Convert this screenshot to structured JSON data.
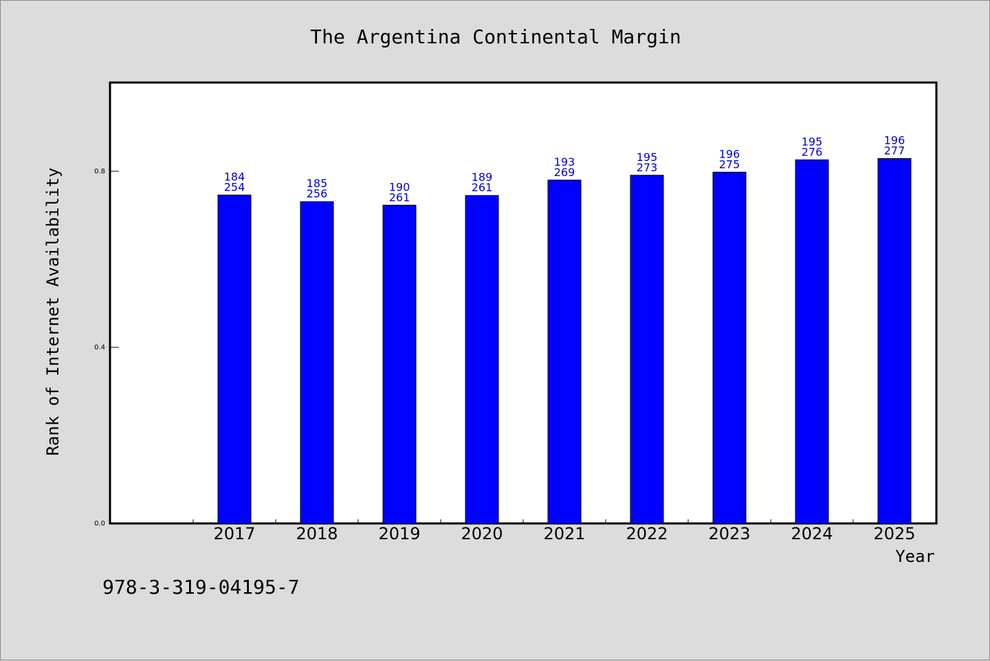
{
  "chart_data": {
    "type": "bar",
    "title": "The Argentina Continental Margin",
    "xlabel": "Year",
    "ylabel": "Rank of Internet Availability",
    "categories": [
      "2017",
      "2018",
      "2019",
      "2020",
      "2021",
      "2022",
      "2023",
      "2024",
      "2025"
    ],
    "values": [
      0.746,
      0.731,
      0.723,
      0.745,
      0.78,
      0.791,
      0.798,
      0.826,
      0.829
    ],
    "data_labels_top": [
      "184",
      "185",
      "190",
      "189",
      "193",
      "195",
      "196",
      "195",
      "196"
    ],
    "data_labels_bottom": [
      "254",
      "256",
      "261",
      "261",
      "269",
      "273",
      "275",
      "276",
      "277"
    ],
    "yticks": [
      "0.0",
      "0.4",
      "0.8"
    ],
    "ylim": [
      0,
      1.0
    ],
    "grid": false,
    "bar_color": "#0000ff",
    "label_color": "#0000cc"
  },
  "footer": {
    "isbn": "978-3-319-04195-7"
  }
}
